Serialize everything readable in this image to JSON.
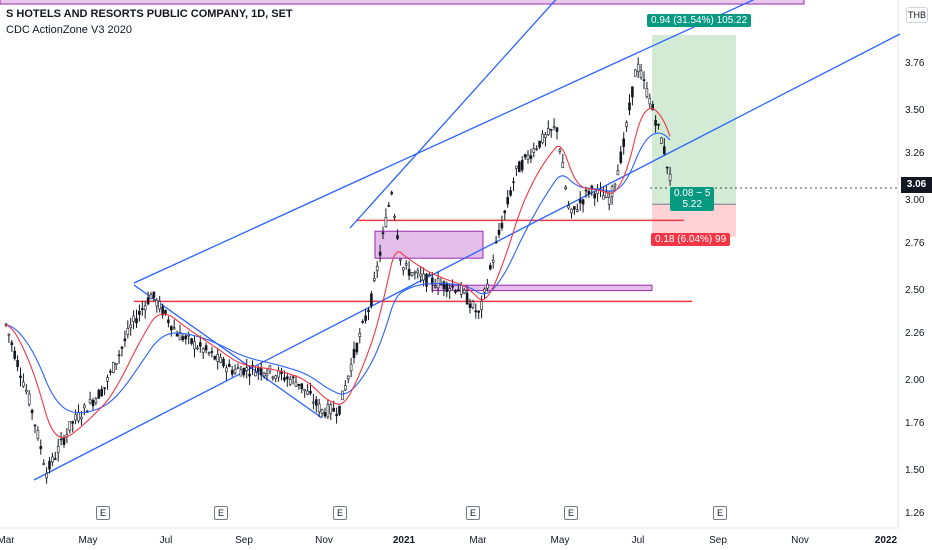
{
  "legend": {
    "title": "S HOTELS AND RESORTS PUBLIC COMPANY, 1D, SET",
    "indicator": "CDC ActionZone V3 2020"
  },
  "currency": "THB",
  "last_price": "3.06",
  "position": {
    "target_label": "0.94 (31.54%) 105.22",
    "stop_label": "0.18 (6.04%) 99",
    "ratio_line1": "0.08 ~ 5",
    "ratio_line2": "5.22",
    "entry": 2.97,
    "target": 3.91,
    "stop": 2.79
  },
  "earnings_marker": "E",
  "colors": {
    "up": "#131722",
    "down": "#131722",
    "fast_ma": "#f23645",
    "slow_ma": "#2962ff",
    "channel": "#2962ff",
    "support": "#f23645",
    "zone_fill": "#ce93d8",
    "target_zone": "#c8e6c9",
    "stop_zone": "#ffcdd2"
  },
  "chart_data": {
    "type": "candlestick",
    "x_ticks": [
      "Mar",
      "May",
      "Jul",
      "Sep",
      "Nov",
      "2021",
      "Mar",
      "May",
      "Jul",
      "Sep",
      "Nov",
      "2022"
    ],
    "y_ticks": [
      "3.76",
      "3.50",
      "3.26",
      "3.00",
      "2.76",
      "2.50",
      "2.26",
      "2.00",
      "1.76",
      "1.50",
      "1.26"
    ],
    "ylim": [
      1.2,
      4.0
    ],
    "close_path": [
      {
        "date": "2020-03-01",
        "value": 2.3
      },
      {
        "date": "2020-03-20",
        "value": 1.85
      },
      {
        "date": "2020-04-01",
        "value": 1.48
      },
      {
        "date": "2020-04-20",
        "value": 1.75
      },
      {
        "date": "2020-05-15",
        "value": 1.95
      },
      {
        "date": "2020-06-05",
        "value": 2.3
      },
      {
        "date": "2020-06-20",
        "value": 2.47
      },
      {
        "date": "2020-07-10",
        "value": 2.25
      },
      {
        "date": "2020-08-01",
        "value": 2.15
      },
      {
        "date": "2020-08-20",
        "value": 2.05
      },
      {
        "date": "2020-09-15",
        "value": 2.05
      },
      {
        "date": "2020-10-10",
        "value": 1.98
      },
      {
        "date": "2020-10-28",
        "value": 1.82
      },
      {
        "date": "2020-11-10",
        "value": 1.83
      },
      {
        "date": "2020-11-20",
        "value": 2.1
      },
      {
        "date": "2020-12-05",
        "value": 2.45
      },
      {
        "date": "2020-12-20",
        "value": 3.05
      },
      {
        "date": "2020-12-28",
        "value": 2.62
      },
      {
        "date": "2021-01-15",
        "value": 2.55
      },
      {
        "date": "2021-02-10",
        "value": 2.5
      },
      {
        "date": "2021-02-25",
        "value": 2.35
      },
      {
        "date": "2021-03-10",
        "value": 2.75
      },
      {
        "date": "2021-03-25",
        "value": 3.15
      },
      {
        "date": "2021-04-10",
        "value": 3.3
      },
      {
        "date": "2021-04-25",
        "value": 3.4
      },
      {
        "date": "2021-05-05",
        "value": 2.9
      },
      {
        "date": "2021-05-20",
        "value": 3.05
      },
      {
        "date": "2021-06-05",
        "value": 3.0
      },
      {
        "date": "2021-06-15",
        "value": 3.3
      },
      {
        "date": "2021-06-25",
        "value": 3.75
      },
      {
        "date": "2021-07-05",
        "value": 3.55
      },
      {
        "date": "2021-07-15",
        "value": 3.3
      },
      {
        "date": "2021-07-22",
        "value": 3.06
      }
    ],
    "support_lines": [
      2.88,
      2.43
    ],
    "zones": [
      {
        "y_top": 2.82,
        "y_bottom": 2.67
      },
      {
        "y_top": 2.52,
        "y_bottom": 2.49
      }
    ]
  }
}
